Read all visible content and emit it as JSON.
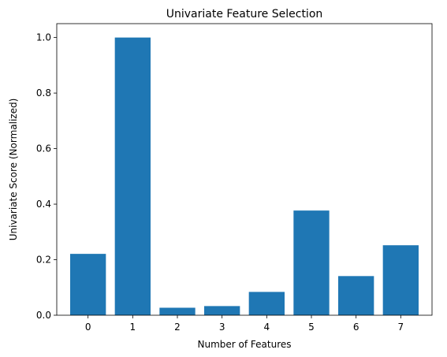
{
  "chart_data": {
    "type": "bar",
    "title": "Univariate Feature Selection",
    "xlabel": "Number of Features",
    "ylabel": "Univariate Score (Normalized)",
    "categories": [
      "0",
      "1",
      "2",
      "3",
      "4",
      "5",
      "6",
      "7"
    ],
    "values": [
      0.221,
      1.0,
      0.027,
      0.033,
      0.084,
      0.377,
      0.141,
      0.252
    ],
    "ylim": [
      0,
      1.05
    ],
    "yticks": [
      "0.0",
      "0.2",
      "0.4",
      "0.6",
      "0.8",
      "1.0"
    ],
    "bar_color": "#1f77b4",
    "grid": false,
    "legend": "none"
  }
}
